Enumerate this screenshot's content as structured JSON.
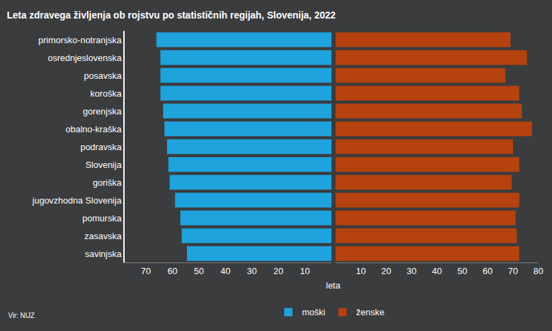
{
  "chart_data": [
    {
      "type": "bar",
      "title": "Leta zdravega življenja ob rojstvu po statističnih regijah, Slovenija, 2022",
      "orientation": "horizontal",
      "categories": [
        "primorsko-notranjska",
        "osrednjeslovenska",
        "posavska",
        "koroška",
        "gorenjska",
        "obalno-kraška",
        "podravska",
        "Slovenija",
        "goriška",
        "jugovzhodna Slovenija",
        "pomurska",
        "zasavska",
        "savinjska"
      ],
      "series": [
        {
          "name": "moški",
          "color": "#1fa3dc",
          "values": [
            66,
            64.5,
            64.5,
            64.5,
            63.5,
            63,
            62,
            61.5,
            61,
            59,
            57,
            56.5,
            54.5
          ]
        }
      ],
      "xlim": [
        0,
        78
      ],
      "xticks": [
        10,
        20,
        30,
        40,
        50,
        60,
        70
      ],
      "legend": "bottom",
      "source": "Vir: NIJZ"
    },
    {
      "type": "bar",
      "orientation": "horizontal",
      "categories": [
        "primorsko-notranjska",
        "osrednjeslovenska",
        "posavska",
        "koroška",
        "gorenjska",
        "obalno-kraška",
        "podravska",
        "Slovenija",
        "goriška",
        "jugovzhodna Slovenija",
        "pomurska",
        "zasavska",
        "savinjska"
      ],
      "series": [
        {
          "name": "ženske",
          "color": "#b5420f",
          "values": [
            69,
            75.5,
            67,
            72.5,
            73.5,
            77.5,
            70,
            72.5,
            69.5,
            72.5,
            71,
            71.5,
            72.5
          ]
        }
      ],
      "xlim": [
        0,
        80
      ],
      "xticks": [
        10,
        20,
        30,
        40,
        50,
        60,
        70,
        80
      ],
      "x_label": "leta",
      "legend": "bottom"
    }
  ]
}
